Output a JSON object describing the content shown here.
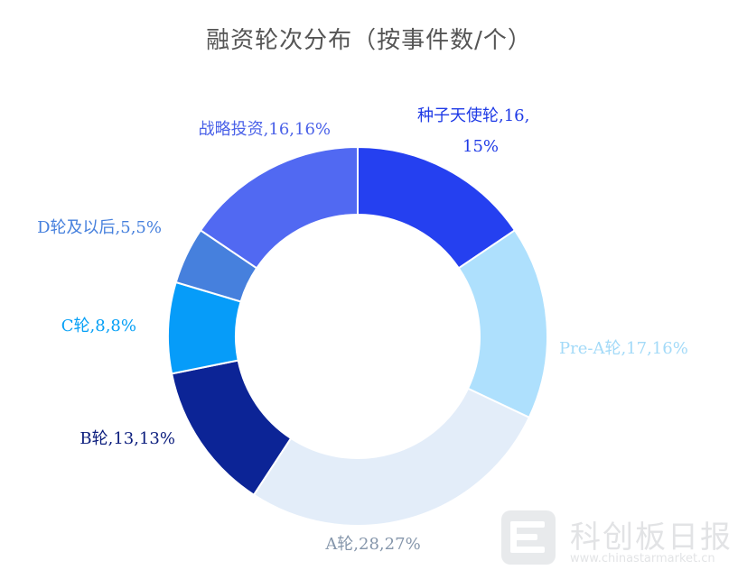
{
  "chart_data": {
    "type": "pie",
    "title": "融资轮次分布（按事件数/个）",
    "style": "donut",
    "categories": [
      "种子天使轮",
      "Pre-A轮",
      "A轮",
      "B轮",
      "C轮",
      "D轮及以后",
      "战略投资"
    ],
    "values": [
      16,
      17,
      28,
      13,
      8,
      5,
      16
    ],
    "percentages": [
      "15%",
      "16%",
      "27%",
      "13%",
      "8%",
      "5%",
      "16%"
    ],
    "labels": [
      "种子天使轮,16,",
      "Pre-A轮,17,16%",
      "A轮,28,27%",
      "B轮,13,13%",
      "C轮,8,8%",
      "D轮及以后,5,5%",
      "战略投资,16,16%"
    ],
    "label_line2": [
      "15%",
      "",
      "",
      "",
      "",
      "",
      ""
    ],
    "colors": [
      "#2540f0",
      "#aee0fd",
      "#e3edf9",
      "#0c2496",
      "#069cf9",
      "#4680dd",
      "#5169f2"
    ],
    "label_colors": [
      "#1e3ae6",
      "#a3daf8",
      "#8596ab",
      "#0b1d7d",
      "#06a0f6",
      "#4680dd",
      "#4a61e8"
    ]
  },
  "watermark": {
    "text": "科创板日报",
    "url": "www.chinastarmarket.cn"
  }
}
